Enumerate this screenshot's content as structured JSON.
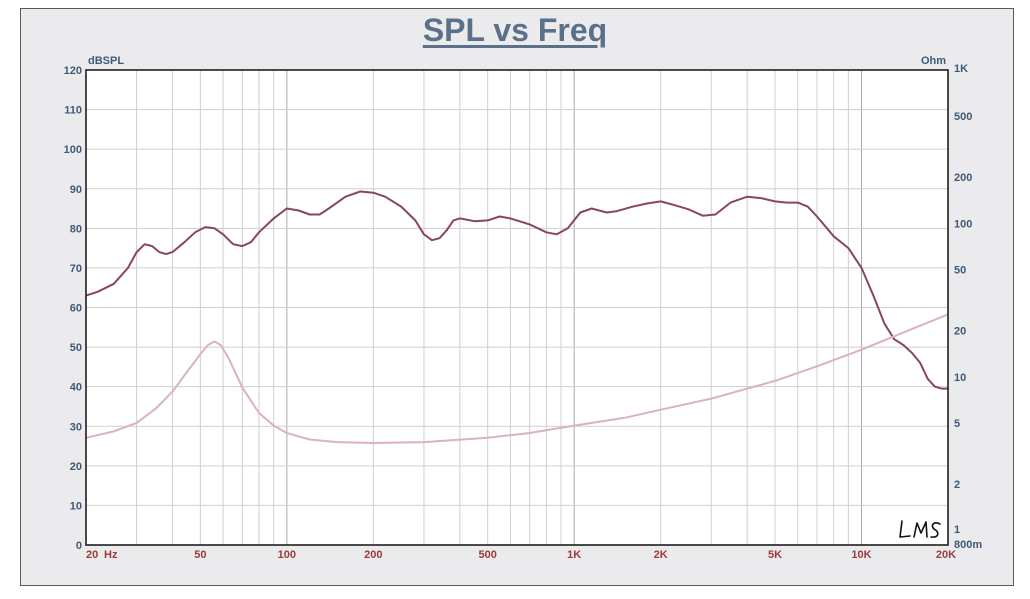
{
  "chart_data": {
    "type": "line",
    "title": "SPL vs Freq",
    "left_axis_unit": "dBSPL",
    "right_axis_unit": "Ohm",
    "x_unit_label": "Hz",
    "x_scale": "log",
    "xlim": [
      20,
      20000
    ],
    "ylim": [
      0,
      120
    ],
    "y2_scale": "log",
    "y2lim": [
      0.8,
      1000
    ],
    "grid": true,
    "x_ticks": [
      {
        "value": 20,
        "label": "20"
      },
      {
        "value": 50,
        "label": "50"
      },
      {
        "value": 100,
        "label": "100"
      },
      {
        "value": 200,
        "label": "200"
      },
      {
        "value": 500,
        "label": "500"
      },
      {
        "value": 1000,
        "label": "1K"
      },
      {
        "value": 2000,
        "label": "2K"
      },
      {
        "value": 5000,
        "label": "5K"
      },
      {
        "value": 10000,
        "label": "10K"
      },
      {
        "value": 20000,
        "label": "20K"
      }
    ],
    "y_ticks": [
      0,
      10,
      20,
      30,
      40,
      50,
      60,
      70,
      80,
      90,
      100,
      110,
      120
    ],
    "y2_ticks": [
      {
        "value": 0.8,
        "label": "800m"
      },
      {
        "value": 1,
        "label": "1"
      },
      {
        "value": 2,
        "label": "2"
      },
      {
        "value": 5,
        "label": "5"
      },
      {
        "value": 10,
        "label": "10"
      },
      {
        "value": 20,
        "label": "20"
      },
      {
        "value": 50,
        "label": "50"
      },
      {
        "value": 100,
        "label": "100"
      },
      {
        "value": 200,
        "label": "200"
      },
      {
        "value": 500,
        "label": "500"
      },
      {
        "value": 1000,
        "label": "1K"
      }
    ],
    "series": [
      {
        "axis": "left",
        "color": "#8a4560",
        "points": [
          [
            20,
            63
          ],
          [
            22,
            64
          ],
          [
            25,
            66
          ],
          [
            28,
            70
          ],
          [
            30,
            74
          ],
          [
            32,
            76
          ],
          [
            34,
            75.5
          ],
          [
            36,
            74
          ],
          [
            38,
            73.5
          ],
          [
            40,
            74
          ],
          [
            44,
            76.5
          ],
          [
            48,
            79
          ],
          [
            52,
            80.3
          ],
          [
            56,
            80
          ],
          [
            60,
            78.5
          ],
          [
            65,
            76
          ],
          [
            70,
            75.5
          ],
          [
            75,
            76.5
          ],
          [
            80,
            79
          ],
          [
            90,
            82.5
          ],
          [
            100,
            85
          ],
          [
            110,
            84.5
          ],
          [
            120,
            83.5
          ],
          [
            130,
            83.5
          ],
          [
            140,
            85
          ],
          [
            160,
            88
          ],
          [
            180,
            89.3
          ],
          [
            200,
            89
          ],
          [
            220,
            88
          ],
          [
            250,
            85.5
          ],
          [
            280,
            82
          ],
          [
            300,
            78.5
          ],
          [
            320,
            77
          ],
          [
            340,
            77.5
          ],
          [
            360,
            79.5
          ],
          [
            380,
            82
          ],
          [
            400,
            82.5
          ],
          [
            450,
            81.8
          ],
          [
            500,
            82
          ],
          [
            550,
            83
          ],
          [
            600,
            82.5
          ],
          [
            700,
            81
          ],
          [
            800,
            79
          ],
          [
            870,
            78.5
          ],
          [
            950,
            80
          ],
          [
            1050,
            84
          ],
          [
            1150,
            85
          ],
          [
            1300,
            84
          ],
          [
            1400,
            84.3
          ],
          [
            1600,
            85.5
          ],
          [
            1800,
            86.3
          ],
          [
            2000,
            86.8
          ],
          [
            2200,
            86
          ],
          [
            2500,
            84.8
          ],
          [
            2800,
            83.2
          ],
          [
            3100,
            83.5
          ],
          [
            3500,
            86.5
          ],
          [
            4000,
            88
          ],
          [
            4500,
            87.6
          ],
          [
            5000,
            86.8
          ],
          [
            5500,
            86.5
          ],
          [
            6000,
            86.5
          ],
          [
            6500,
            85.5
          ],
          [
            7000,
            83
          ],
          [
            8000,
            78
          ],
          [
            9000,
            75
          ],
          [
            10000,
            70
          ],
          [
            11000,
            63
          ],
          [
            12000,
            56
          ],
          [
            13000,
            52
          ],
          [
            14000,
            50.5
          ],
          [
            15000,
            48.5
          ],
          [
            16000,
            46
          ],
          [
            17000,
            42
          ],
          [
            18000,
            40
          ],
          [
            19000,
            39.5
          ],
          [
            20000,
            39.5
          ]
        ]
      },
      {
        "axis": "right",
        "color": "#d9b4bb",
        "points": [
          [
            20,
            4
          ],
          [
            25,
            4.4
          ],
          [
            30,
            5
          ],
          [
            35,
            6.2
          ],
          [
            40,
            8
          ],
          [
            45,
            10.8
          ],
          [
            50,
            14
          ],
          [
            53,
            16
          ],
          [
            56,
            17
          ],
          [
            59,
            16
          ],
          [
            63,
            13
          ],
          [
            70,
            8.5
          ],
          [
            80,
            5.8
          ],
          [
            90,
            4.8
          ],
          [
            100,
            4.3
          ],
          [
            120,
            3.9
          ],
          [
            150,
            3.75
          ],
          [
            200,
            3.7
          ],
          [
            300,
            3.75
          ],
          [
            500,
            4
          ],
          [
            700,
            4.3
          ],
          [
            1000,
            4.8
          ],
          [
            1500,
            5.4
          ],
          [
            2000,
            6.1
          ],
          [
            3000,
            7.2
          ],
          [
            5000,
            9.4
          ],
          [
            7000,
            11.7
          ],
          [
            10000,
            15
          ],
          [
            15000,
            20.5
          ],
          [
            20000,
            25.5
          ]
        ]
      }
    ]
  }
}
